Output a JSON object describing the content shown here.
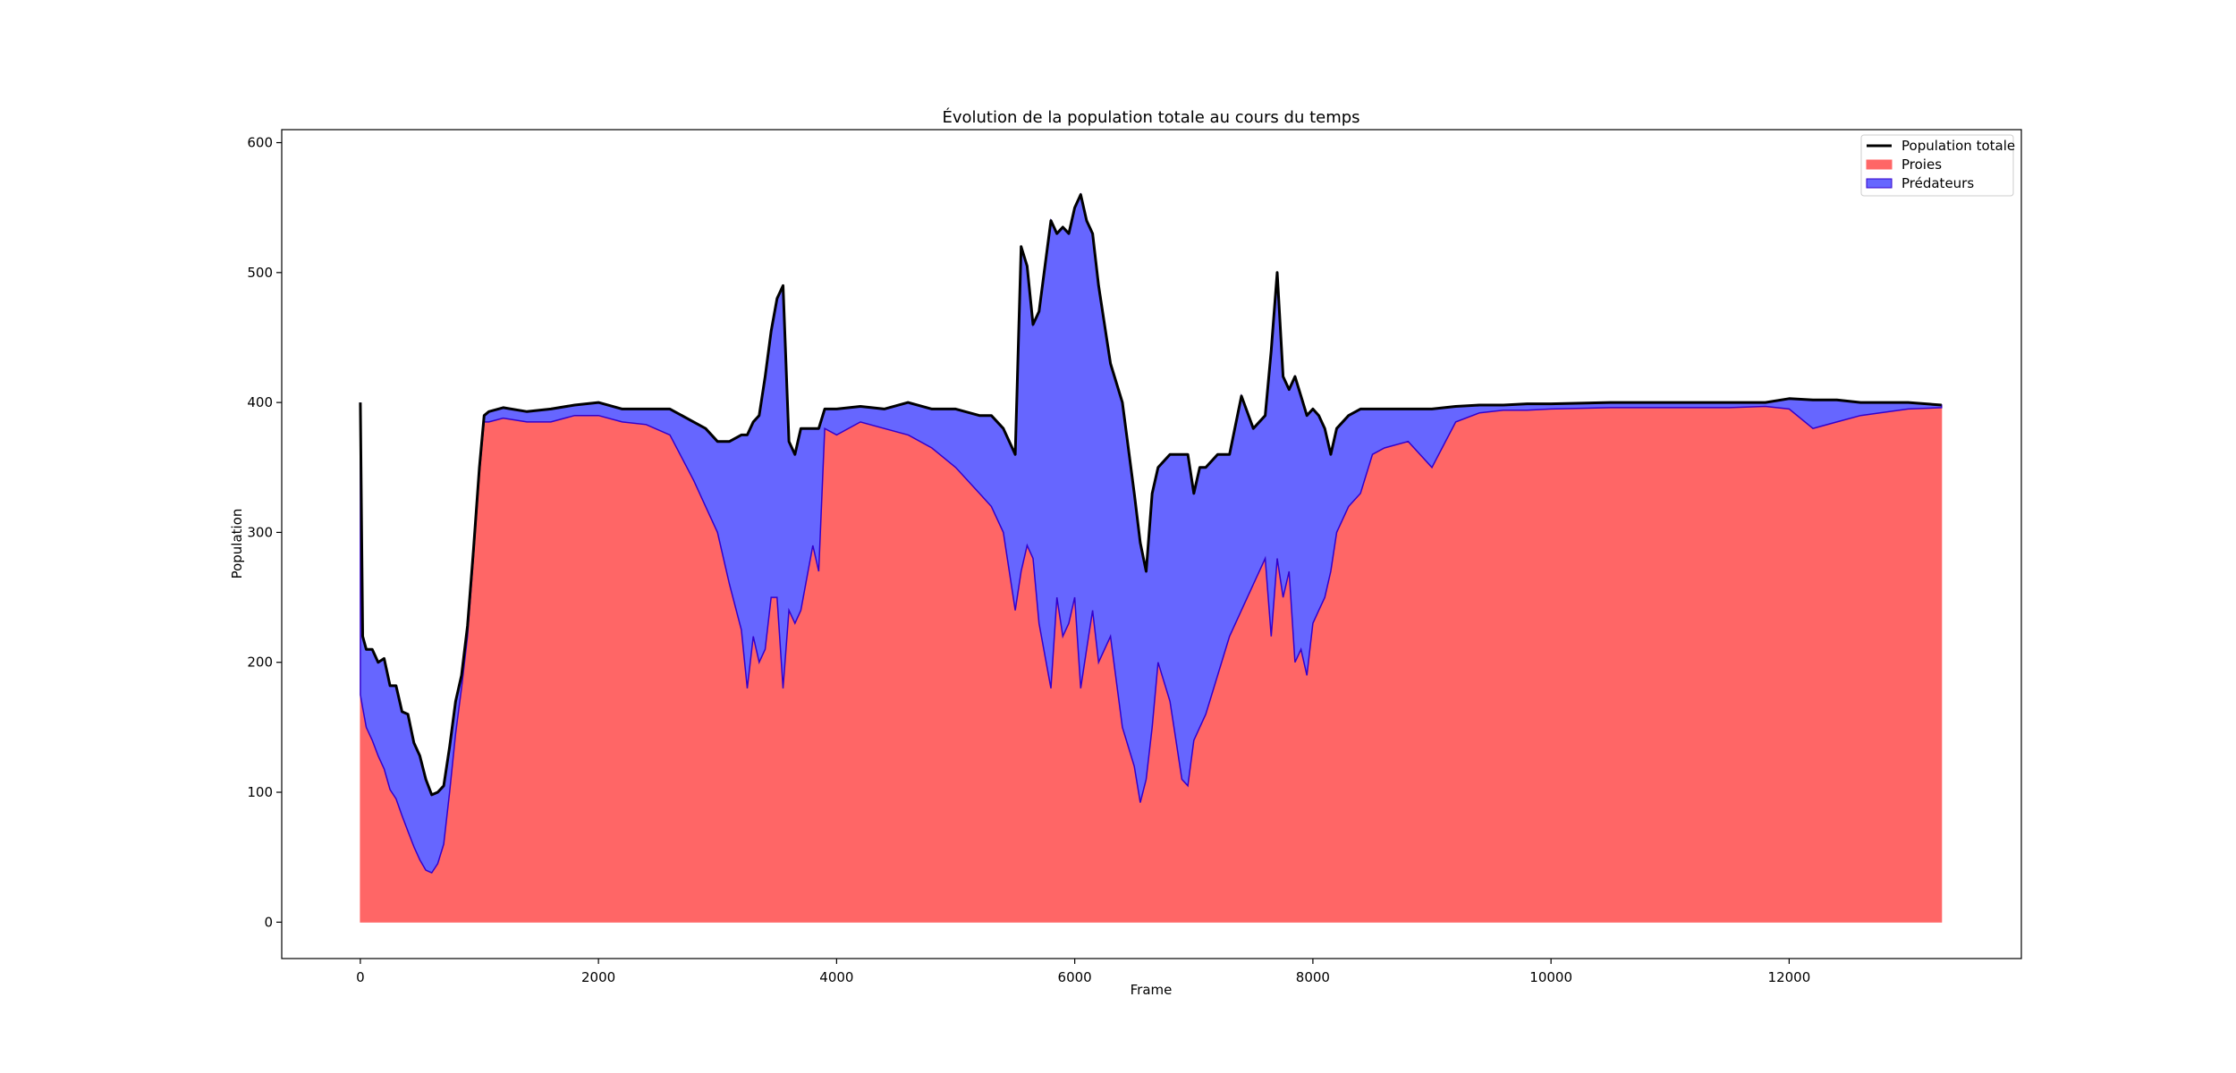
{
  "chart_data": {
    "type": "area",
    "title": "Évolution de la population totale au cours du temps",
    "xlabel": "Frame",
    "ylabel": "Population",
    "xlim": [
      -660,
      13950
    ],
    "ylim": [
      -28,
      610
    ],
    "xticks": [
      0,
      2000,
      4000,
      6000,
      8000,
      10000,
      12000
    ],
    "yticks": [
      0,
      100,
      200,
      300,
      400,
      500,
      600
    ],
    "legend": "top-right",
    "grid": false,
    "colors": {
      "total": "#000000",
      "prey": "#ff6666",
      "predator": "#6666ff",
      "predator_edge": "#3300cc"
    },
    "legend_entries": [
      {
        "key": "total",
        "label": "Population totale",
        "kind": "line"
      },
      {
        "key": "prey",
        "label": "Proies",
        "kind": "patch"
      },
      {
        "key": "predator",
        "label": "Prédateurs",
        "kind": "patch"
      }
    ],
    "x": [
      0,
      20,
      50,
      100,
      150,
      200,
      250,
      300,
      350,
      400,
      450,
      500,
      550,
      600,
      650,
      700,
      750,
      800,
      850,
      900,
      950,
      1000,
      1040,
      1080,
      1200,
      1400,
      1600,
      1800,
      2000,
      2200,
      2400,
      2600,
      2800,
      2900,
      3000,
      3100,
      3200,
      3250,
      3300,
      3350,
      3400,
      3450,
      3500,
      3550,
      3600,
      3650,
      3700,
      3800,
      3850,
      3900,
      4000,
      4200,
      4400,
      4600,
      4800,
      5000,
      5200,
      5300,
      5400,
      5500,
      5550,
      5600,
      5650,
      5700,
      5800,
      5850,
      5900,
      5950,
      6000,
      6050,
      6100,
      6150,
      6200,
      6300,
      6400,
      6500,
      6550,
      6600,
      6650,
      6700,
      6800,
      6850,
      6900,
      6950,
      7000,
      7050,
      7100,
      7200,
      7300,
      7400,
      7500,
      7600,
      7650,
      7700,
      7750,
      7800,
      7850,
      7900,
      7950,
      8000,
      8050,
      8100,
      8150,
      8200,
      8300,
      8400,
      8500,
      8600,
      8800,
      9000,
      9200,
      9400,
      9600,
      9800,
      10000,
      10500,
      11000,
      11500,
      11800,
      12000,
      12200,
      12400,
      12600,
      13000,
      13280
    ],
    "series": [
      {
        "key": "prey",
        "name": "Proies",
        "values": [
          175,
          165,
          150,
          140,
          128,
          118,
          102,
          95,
          82,
          70,
          58,
          48,
          40,
          38,
          45,
          60,
          100,
          145,
          180,
          220,
          280,
          345,
          385,
          385,
          388,
          385,
          385,
          390,
          390,
          385,
          383,
          375,
          340,
          320,
          300,
          260,
          225,
          180,
          220,
          200,
          210,
          250,
          250,
          180,
          240,
          230,
          240,
          290,
          270,
          380,
          375,
          385,
          380,
          375,
          365,
          350,
          330,
          320,
          300,
          240,
          270,
          290,
          280,
          230,
          180,
          250,
          220,
          230,
          250,
          180,
          210,
          240,
          200,
          220,
          150,
          120,
          92,
          110,
          150,
          200,
          170,
          140,
          110,
          105,
          140,
          150,
          160,
          190,
          220,
          240,
          260,
          280,
          220,
          280,
          250,
          270,
          200,
          210,
          190,
          230,
          240,
          250,
          270,
          300,
          320,
          330,
          360,
          365,
          370,
          350,
          385,
          392,
          394,
          394,
          395,
          396,
          396,
          396,
          397,
          395,
          380,
          385,
          390,
          395,
          396
        ]
      },
      {
        "key": "predator",
        "name": "Prédateurs",
        "values": [
          225,
          55,
          60,
          70,
          72,
          85,
          80,
          87,
          80,
          90,
          80,
          80,
          70,
          60,
          55,
          45,
          35,
          25,
          10,
          8,
          6,
          5,
          5,
          8,
          8,
          8,
          10,
          8,
          10,
          10,
          12,
          20,
          45,
          60,
          70,
          110,
          150,
          195,
          165,
          190,
          210,
          205,
          230,
          310,
          130,
          130,
          140,
          90,
          110,
          15,
          20,
          12,
          15,
          25,
          30,
          45,
          60,
          70,
          80,
          120,
          250,
          215,
          180,
          240,
          360,
          280,
          315,
          300,
          300,
          380,
          330,
          290,
          290,
          210,
          250,
          210,
          200,
          160,
          180,
          150,
          190,
          220,
          250,
          255,
          190,
          200,
          190,
          170,
          140,
          165,
          120,
          110,
          220,
          220,
          170,
          140,
          220,
          195,
          200,
          165,
          150,
          130,
          90,
          80,
          70,
          65,
          35,
          30,
          25,
          45,
          12,
          6,
          4,
          5,
          4,
          4,
          4,
          4,
          3,
          8,
          22,
          17,
          10,
          5,
          2
        ]
      }
    ]
  }
}
